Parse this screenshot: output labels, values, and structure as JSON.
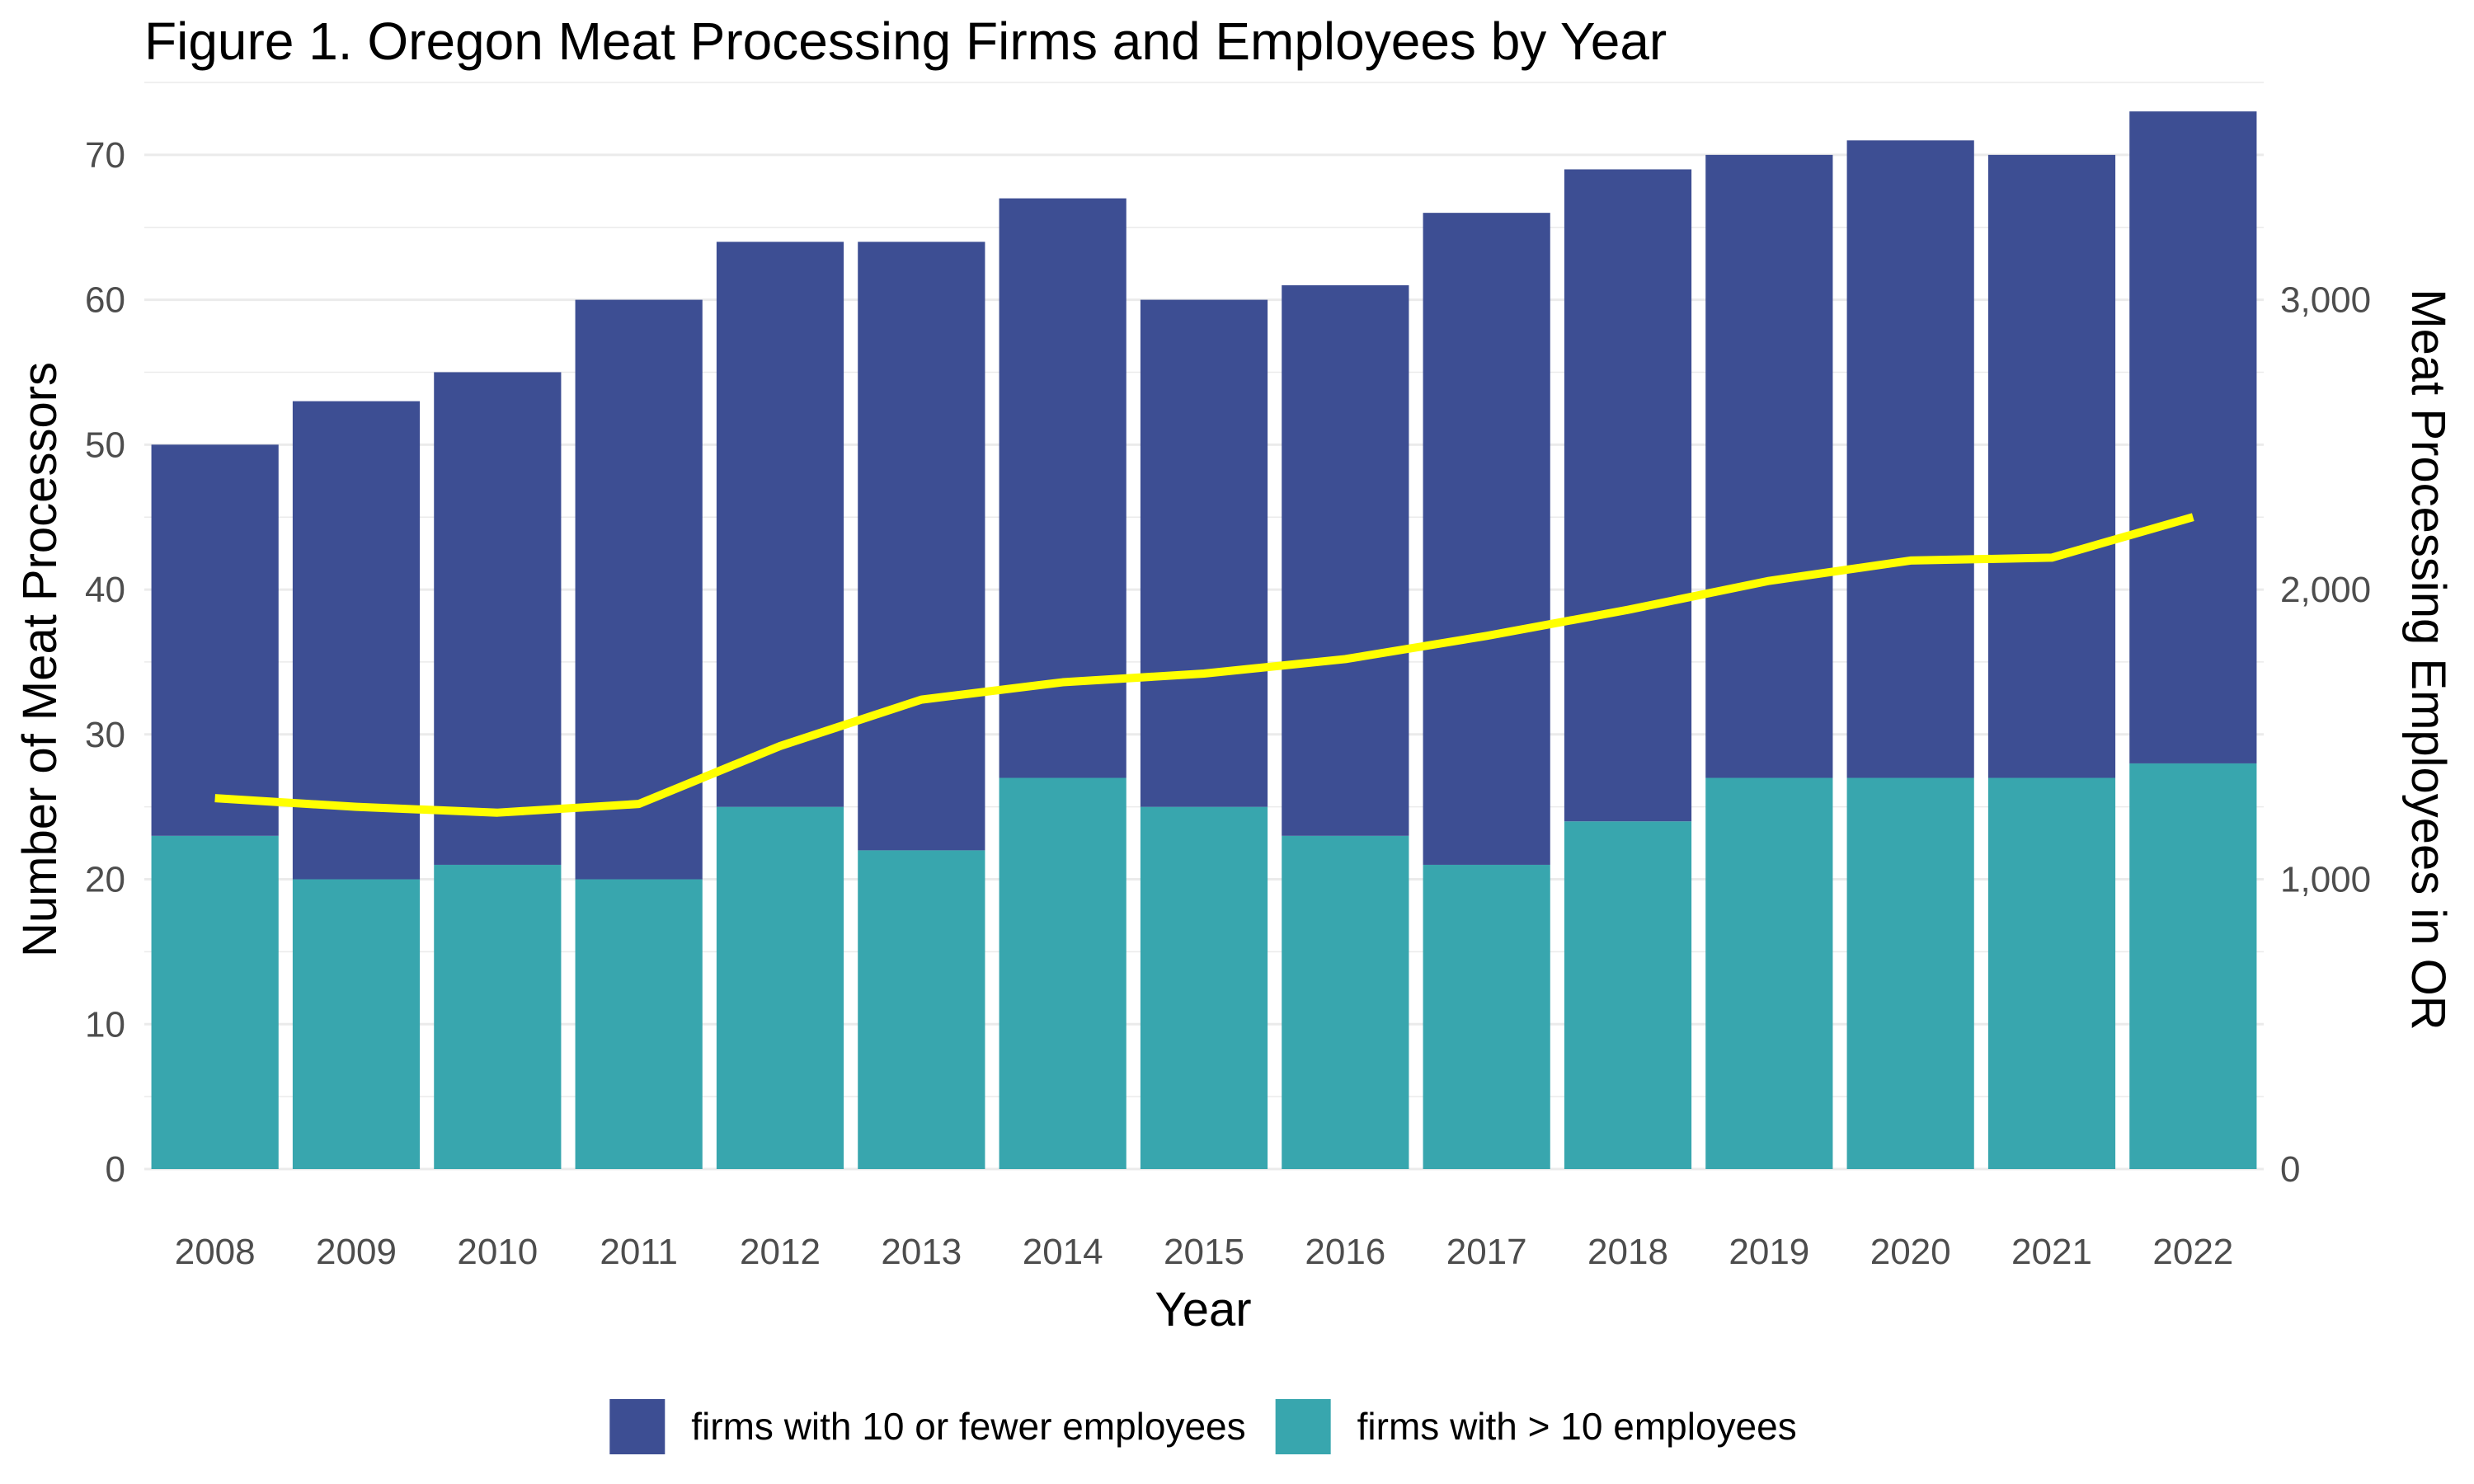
{
  "chart_data": {
    "type": "bar",
    "stacked": true,
    "title": "Figure 1. Oregon Meat Processing Firms and Employees by Year",
    "xlabel": "Year",
    "ylabel": "Number of Meat Processors",
    "y2label": "Meat Processing Employees in OR",
    "categories": [
      "2008",
      "2009",
      "2010",
      "2011",
      "2012",
      "2013",
      "2014",
      "2015",
      "2016",
      "2017",
      "2018",
      "2019",
      "2020",
      "2021",
      "2022"
    ],
    "series": [
      {
        "name": "firms with > 10 employees",
        "color": "#38a6ae",
        "values": [
          23,
          20,
          21,
          20,
          25,
          22,
          27,
          25,
          23,
          21,
          24,
          27,
          27,
          27,
          28
        ]
      },
      {
        "name": "firms with 10 or fewer employees",
        "color": "#3d4e93",
        "values": [
          27,
          33,
          34,
          40,
          39,
          42,
          40,
          35,
          38,
          45,
          45,
          43,
          44,
          43,
          45
        ]
      }
    ],
    "line": {
      "axis": "right",
      "color": "#ffff00",
      "values": [
        1280,
        1250,
        1230,
        1260,
        1460,
        1620,
        1680,
        1710,
        1760,
        1840,
        1930,
        2030,
        2100,
        2110,
        2250
      ]
    },
    "ylim": [
      0,
      75
    ],
    "y2lim": [
      0,
      3750
    ],
    "yticks": [
      "0",
      "10",
      "20",
      "30",
      "40",
      "50",
      "60",
      "70"
    ],
    "y2ticks": [
      "0",
      "1,000",
      "2,000",
      "3,000"
    ],
    "grid": true,
    "legend_position": "bottom",
    "legend": [
      {
        "label": "firms with 10 or fewer employees",
        "color": "#3d4e93"
      },
      {
        "label": "firms with > 10 employees",
        "color": "#38a6ae"
      }
    ]
  }
}
